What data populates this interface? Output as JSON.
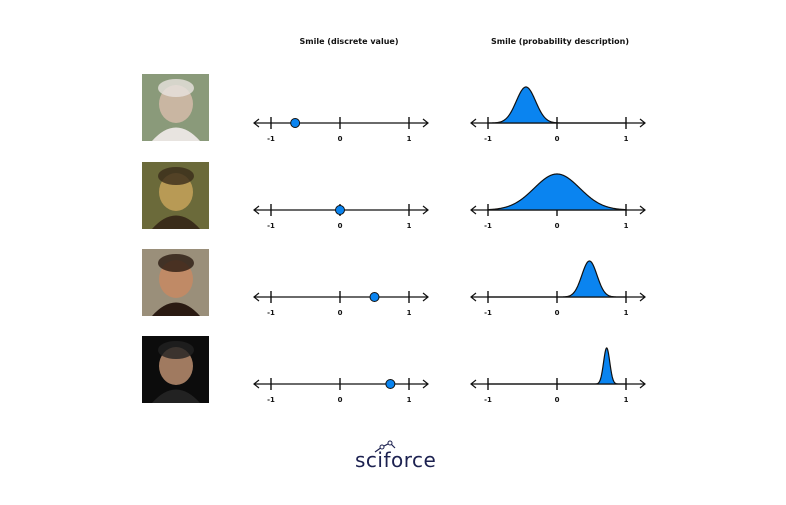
{
  "headers": {
    "discrete": "Smile (discrete value)",
    "probability": "Smile (probability description)"
  },
  "tick_labels": [
    "-1",
    "0",
    "1"
  ],
  "axis_range": [
    -1,
    1
  ],
  "colors": {
    "accent": "#0a84f0",
    "line": "#111111",
    "logo": "#1c2150"
  },
  "rows": [
    {
      "subject": "boy",
      "photo_tones": [
        "#8a9a7a",
        "#c9b6a2",
        "#e8e4e0"
      ],
      "discrete_value": -0.65,
      "distribution": {
        "mean": -0.45,
        "sd": 0.14
      }
    },
    {
      "subject": "mona-lisa",
      "photo_tones": [
        "#6b6a3a",
        "#b89a55",
        "#3a2c1a"
      ],
      "discrete_value": 0.0,
      "distribution": {
        "mean": 0.0,
        "sd": 0.33
      }
    },
    {
      "subject": "girl",
      "photo_tones": [
        "#9a8f7a",
        "#c08a66",
        "#2a1a12"
      ],
      "discrete_value": 0.5,
      "distribution": {
        "mean": 0.47,
        "sd": 0.11
      }
    },
    {
      "subject": "man",
      "photo_tones": [
        "#0c0c0c",
        "#a07a60",
        "#222222"
      ],
      "discrete_value": 0.73,
      "distribution": {
        "mean": 0.72,
        "sd": 0.045
      }
    }
  ],
  "logo": {
    "text": "sciforce"
  }
}
